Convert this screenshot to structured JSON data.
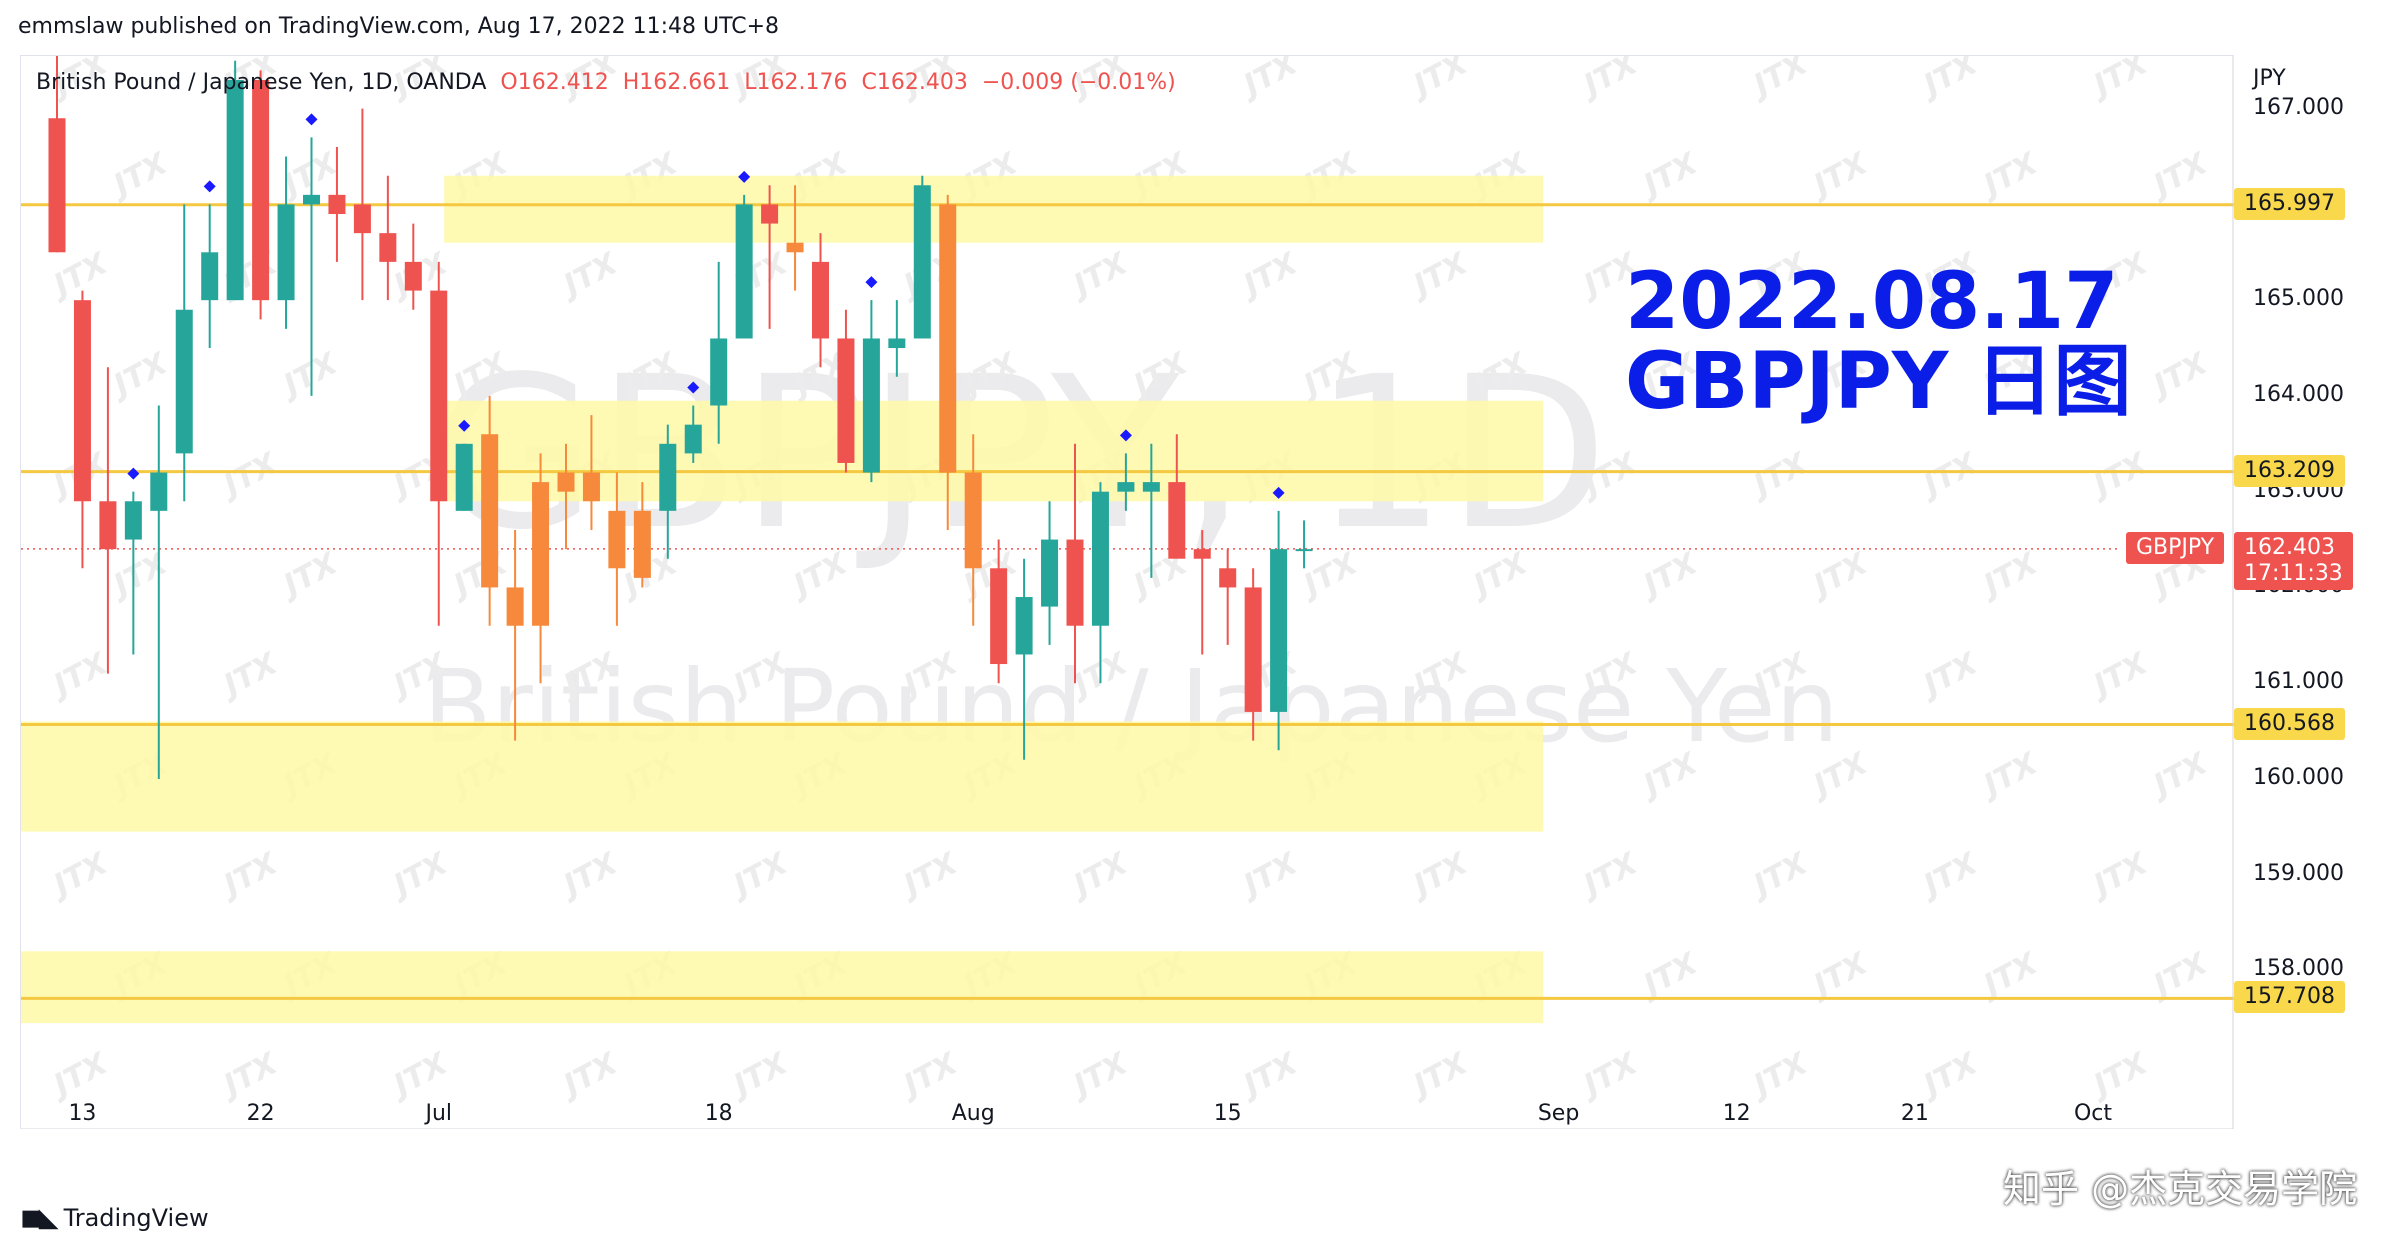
{
  "header": {
    "published_line": "emmslaw published on TradingView.com, Aug 17, 2022 11:48 UTC+8"
  },
  "legend": {
    "symbol": "British Pound / Japanese Yen, 1D, OANDA",
    "open": "O162.412",
    "high": "H162.661",
    "low": "L162.176",
    "close": "C162.403",
    "change": "−0.009 (−0.01%)"
  },
  "watermark": {
    "symbol": "GBPJPY, 1D",
    "description": "British Pound / Japanese Yen",
    "mark": "JTX"
  },
  "annotation": {
    "date": "2022.08.17",
    "title": "GBPJPY 日图"
  },
  "price_axis": {
    "currency": "JPY",
    "last_symbol": "GBPJPY",
    "last_price": "162.403",
    "countdown": "17:11:33",
    "tagged_levels": [
      "165.997",
      "163.209",
      "160.568",
      "157.708"
    ]
  },
  "footer": {
    "brand": "TradingView",
    "credit": "知乎 @杰克交易学院"
  },
  "colors": {
    "up": "#26a69a",
    "down": "#ef5350",
    "highlight_candle": "#f6893b",
    "zone_fill": "#fff9a6",
    "level_line": "#f5c842",
    "annotation": "#0a1ee8"
  },
  "chart_data": {
    "type": "candlestick",
    "title": "British Pound / Japanese Yen, 1D, OANDA",
    "ylabel": "JPY",
    "ylim": [
      156.95,
      167.55
    ],
    "y_ticks": [
      158,
      159,
      160,
      161,
      162,
      163,
      164,
      165,
      166,
      167
    ],
    "x_ticks": [
      {
        "label": "13",
        "index": 1
      },
      {
        "label": "22",
        "index": 8
      },
      {
        "label": "Jul",
        "index": 15
      },
      {
        "label": "18",
        "index": 26
      },
      {
        "label": "Aug",
        "index": 36
      },
      {
        "label": "15",
        "index": 46
      },
      {
        "label": "Sep",
        "index": 59
      },
      {
        "label": "12",
        "index": 66
      },
      {
        "label": "21",
        "index": 73
      },
      {
        "label": "Oct",
        "index": 80
      }
    ],
    "candles": [
      {
        "o": 166.9,
        "h": 167.6,
        "l": 165.5,
        "c": 165.5
      },
      {
        "o": 165.0,
        "h": 165.1,
        "l": 162.2,
        "c": 162.9
      },
      {
        "o": 162.9,
        "h": 164.3,
        "l": 161.1,
        "c": 162.4
      },
      {
        "o": 162.5,
        "h": 163.0,
        "l": 161.3,
        "c": 162.9
      },
      {
        "o": 162.8,
        "h": 163.9,
        "l": 160.0,
        "c": 163.2
      },
      {
        "o": 163.4,
        "h": 166.0,
        "l": 162.9,
        "c": 164.9
      },
      {
        "o": 165.0,
        "h": 166.0,
        "l": 164.5,
        "c": 165.5
      },
      {
        "o": 165.0,
        "h": 167.5,
        "l": 165.0,
        "c": 167.3
      },
      {
        "o": 167.3,
        "h": 167.4,
        "l": 164.8,
        "c": 165.0
      },
      {
        "o": 165.0,
        "h": 166.5,
        "l": 164.7,
        "c": 166.0
      },
      {
        "o": 166.0,
        "h": 166.7,
        "l": 164.0,
        "c": 166.1
      },
      {
        "o": 166.1,
        "h": 166.6,
        "l": 165.4,
        "c": 165.9
      },
      {
        "o": 166.0,
        "h": 167.0,
        "l": 165.0,
        "c": 165.7
      },
      {
        "o": 165.7,
        "h": 166.3,
        "l": 165.0,
        "c": 165.4
      },
      {
        "o": 165.4,
        "h": 165.8,
        "l": 164.9,
        "c": 165.1
      },
      {
        "o": 165.1,
        "h": 165.4,
        "l": 161.6,
        "c": 162.9
      },
      {
        "o": 162.8,
        "h": 163.5,
        "l": 162.8,
        "c": 163.5
      },
      {
        "o": 163.6,
        "h": 164.0,
        "l": 161.6,
        "c": 162.0
      },
      {
        "o": 162.0,
        "h": 162.6,
        "l": 160.4,
        "c": 161.6
      },
      {
        "o": 161.6,
        "h": 163.4,
        "l": 161.0,
        "c": 163.1
      },
      {
        "o": 163.0,
        "h": 163.5,
        "l": 162.4,
        "c": 163.2
      },
      {
        "o": 163.2,
        "h": 163.8,
        "l": 162.6,
        "c": 162.9
      },
      {
        "o": 162.8,
        "h": 163.2,
        "l": 161.6,
        "c": 162.2
      },
      {
        "o": 162.1,
        "h": 163.1,
        "l": 162.0,
        "c": 162.8
      },
      {
        "o": 162.8,
        "h": 163.7,
        "l": 162.3,
        "c": 163.5
      },
      {
        "o": 163.4,
        "h": 163.9,
        "l": 163.3,
        "c": 163.7
      },
      {
        "o": 163.9,
        "h": 165.4,
        "l": 163.5,
        "c": 164.6
      },
      {
        "o": 164.6,
        "h": 166.1,
        "l": 164.6,
        "c": 166.0
      },
      {
        "o": 166.0,
        "h": 166.2,
        "l": 164.7,
        "c": 165.8
      },
      {
        "o": 165.6,
        "h": 166.2,
        "l": 165.1,
        "c": 165.5
      },
      {
        "o": 165.4,
        "h": 165.7,
        "l": 164.3,
        "c": 164.6
      },
      {
        "o": 164.6,
        "h": 164.9,
        "l": 163.2,
        "c": 163.3
      },
      {
        "o": 163.2,
        "h": 165.0,
        "l": 163.1,
        "c": 164.6
      },
      {
        "o": 164.5,
        "h": 165.0,
        "l": 164.2,
        "c": 164.6
      },
      {
        "o": 164.6,
        "h": 166.3,
        "l": 164.6,
        "c": 166.2
      },
      {
        "o": 166.0,
        "h": 166.1,
        "l": 162.6,
        "c": 163.2
      },
      {
        "o": 163.2,
        "h": 163.6,
        "l": 161.6,
        "c": 162.2
      },
      {
        "o": 162.2,
        "h": 162.5,
        "l": 161.0,
        "c": 161.2
      },
      {
        "o": 161.3,
        "h": 162.3,
        "l": 160.2,
        "c": 161.9
      },
      {
        "o": 161.8,
        "h": 162.9,
        "l": 161.4,
        "c": 162.5
      },
      {
        "o": 162.5,
        "h": 163.5,
        "l": 161.0,
        "c": 161.6
      },
      {
        "o": 161.6,
        "h": 163.1,
        "l": 161.0,
        "c": 163.0
      },
      {
        "o": 163.0,
        "h": 163.4,
        "l": 162.8,
        "c": 163.1
      },
      {
        "o": 163.0,
        "h": 163.5,
        "l": 162.1,
        "c": 163.1
      },
      {
        "o": 163.1,
        "h": 163.6,
        "l": 162.4,
        "c": 162.3
      },
      {
        "o": 162.4,
        "h": 162.6,
        "l": 161.3,
        "c": 162.3
      },
      {
        "o": 162.2,
        "h": 162.4,
        "l": 161.4,
        "c": 162.0
      },
      {
        "o": 162.0,
        "h": 162.2,
        "l": 160.4,
        "c": 160.7
      },
      {
        "o": 160.7,
        "h": 162.8,
        "l": 160.3,
        "c": 162.4
      },
      {
        "o": 162.4,
        "h": 162.7,
        "l": 162.2,
        "c": 162.4
      }
    ],
    "highlight_indices": [
      17,
      18,
      19,
      20,
      21,
      22,
      23,
      29,
      35,
      36
    ],
    "signal_marks_above_index": [
      3,
      6,
      10,
      16,
      25,
      27,
      32,
      42,
      48
    ],
    "horizontal_levels": [
      165.997,
      163.209,
      160.568,
      157.708
    ],
    "zones": [
      {
        "from_index": 16,
        "to_index": 58,
        "low": 165.6,
        "high": 166.3
      },
      {
        "from_index": 16,
        "to_index": 58,
        "low": 162.9,
        "high": 163.95
      },
      {
        "from_index": 0,
        "to_index": 58,
        "low": 159.45,
        "high": 160.6
      },
      {
        "from_index": 0,
        "to_index": 58,
        "low": 157.45,
        "high": 158.2
      }
    ],
    "last_price": 162.403
  }
}
